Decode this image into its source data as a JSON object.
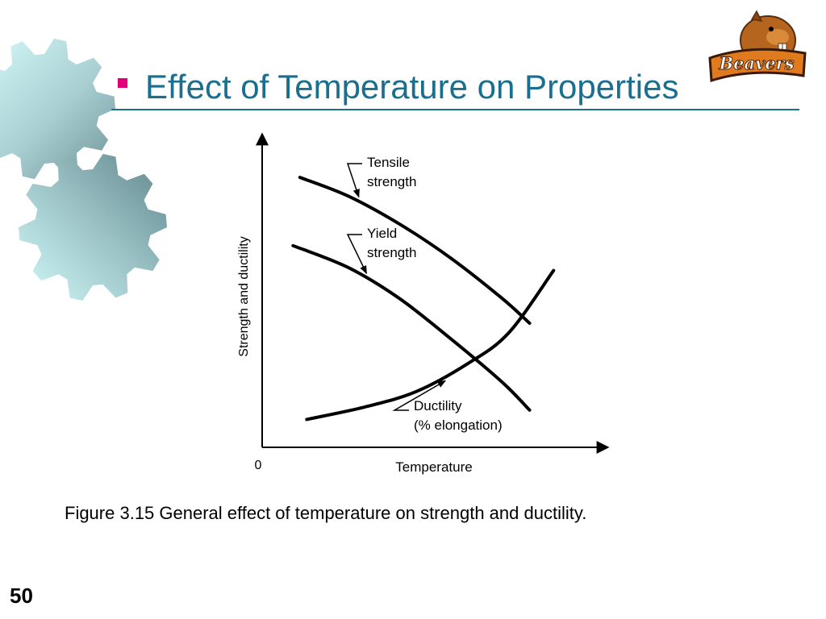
{
  "slide": {
    "title": "Effect of Temperature on Properties",
    "caption": "Figure 3.15  General effect of temperature on strength and ductility.",
    "number": "50",
    "logo_text": "Beavers"
  },
  "colors": {
    "title": "#1a6e8e",
    "bullet": "#e0007a",
    "gear_dark": "#7fa3a8",
    "gear_light": "#c8f3f3",
    "logo_orange": "#e07a1f"
  },
  "chart_data": {
    "type": "line",
    "title": "",
    "xlabel": "Temperature",
    "ylabel": "Strength and ductility",
    "origin_label": "0",
    "grid": false,
    "legend": "none",
    "xlim": [
      0,
      100
    ],
    "ylim": [
      0,
      100
    ],
    "series": [
      {
        "name": "Tensile strength",
        "label_lines": [
          "Tensile",
          "strength"
        ],
        "x": [
          11,
          25,
          40,
          55,
          70,
          78
        ],
        "y": [
          87,
          81,
          72,
          61,
          48,
          40
        ]
      },
      {
        "name": "Yield strength",
        "label_lines": [
          "Yield",
          "strength"
        ],
        "x": [
          9,
          25,
          40,
          55,
          70,
          78
        ],
        "y": [
          65,
          58,
          48,
          35,
          21,
          12
        ]
      },
      {
        "name": "Ductility (% elongation)",
        "label_lines": [
          "Ductility",
          "(% elongation)"
        ],
        "x": [
          13,
          30,
          45,
          60,
          72,
          85
        ],
        "y": [
          9,
          13,
          18,
          27,
          37,
          57
        ]
      }
    ]
  }
}
